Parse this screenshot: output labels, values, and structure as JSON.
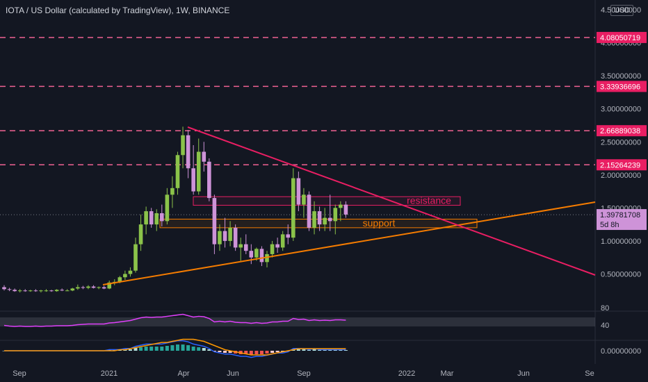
{
  "header": {
    "title": "IOTA / US Dollar (calculated by TradingView), 1W, BINANCE",
    "currency": "USD"
  },
  "colors": {
    "background": "#131722",
    "up": "#8bc34a",
    "down": "#ce93d8",
    "level_line": "#f06292",
    "level_tag": "#e91e63",
    "trendline": "#f57c00",
    "resistance_line": "#e91e63",
    "rsi": "#e040fb",
    "macd": "#2962ff",
    "signal": "#ff9800"
  },
  "chart_data": {
    "type": "candlestick",
    "symbol": "IOTA / US Dollar (calculated by TradingView)",
    "interval": "1W",
    "exchange": "BINANCE",
    "y_axis": {
      "ticks": [
        "4.50000000",
        "4.00000000",
        "3.50000000",
        "3.00000000",
        "2.50000000",
        "2.00000000",
        "1.50000000",
        "1.00000000",
        "0.50000000"
      ],
      "ylim": [
        0.0,
        4.62
      ]
    },
    "x_axis": {
      "ticks": [
        "Sep",
        "2021",
        "Apr",
        "Jun",
        "Sep",
        "2022",
        "Mar",
        "Jun",
        "Se"
      ]
    },
    "price_levels": [
      4.08050719,
      3.33936696,
      2.66889038,
      2.15264239
    ],
    "price_level_labels": [
      "4.08050719",
      "3.33936696",
      "2.66889038",
      "2.15264239"
    ],
    "current_price": "1.39781708",
    "countdown": "5d 8h",
    "candles": [
      [
        0.3,
        0.33,
        0.25,
        0.27
      ],
      [
        0.27,
        0.29,
        0.24,
        0.26
      ],
      [
        0.26,
        0.28,
        0.23,
        0.24
      ],
      [
        0.24,
        0.27,
        0.22,
        0.25
      ],
      [
        0.25,
        0.27,
        0.23,
        0.24
      ],
      [
        0.24,
        0.26,
        0.23,
        0.25
      ],
      [
        0.25,
        0.27,
        0.23,
        0.24
      ],
      [
        0.24,
        0.26,
        0.22,
        0.25
      ],
      [
        0.25,
        0.27,
        0.23,
        0.25
      ],
      [
        0.25,
        0.26,
        0.23,
        0.24
      ],
      [
        0.24,
        0.27,
        0.23,
        0.26
      ],
      [
        0.26,
        0.28,
        0.24,
        0.25
      ],
      [
        0.25,
        0.27,
        0.24,
        0.25
      ],
      [
        0.25,
        0.29,
        0.24,
        0.28
      ],
      [
        0.28,
        0.34,
        0.26,
        0.3
      ],
      [
        0.3,
        0.32,
        0.27,
        0.29
      ],
      [
        0.29,
        0.33,
        0.27,
        0.31
      ],
      [
        0.31,
        0.33,
        0.28,
        0.29
      ],
      [
        0.29,
        0.31,
        0.27,
        0.3
      ],
      [
        0.3,
        0.32,
        0.27,
        0.28
      ],
      [
        0.28,
        0.4,
        0.27,
        0.37
      ],
      [
        0.37,
        0.42,
        0.33,
        0.38
      ],
      [
        0.38,
        0.47,
        0.36,
        0.45
      ],
      [
        0.45,
        0.55,
        0.41,
        0.5
      ],
      [
        0.5,
        0.6,
        0.46,
        0.55
      ],
      [
        0.55,
        1.05,
        0.52,
        0.95
      ],
      [
        0.95,
        1.4,
        0.85,
        1.25
      ],
      [
        1.25,
        1.52,
        1.1,
        1.45
      ],
      [
        1.45,
        1.5,
        1.2,
        1.25
      ],
      [
        1.25,
        1.48,
        1.15,
        1.42
      ],
      [
        1.42,
        1.55,
        1.22,
        1.3
      ],
      [
        1.3,
        1.8,
        1.25,
        1.7
      ],
      [
        1.7,
        1.98,
        1.5,
        1.8
      ],
      [
        1.8,
        2.35,
        1.7,
        2.3
      ],
      [
        2.3,
        2.73,
        2.1,
        2.6
      ],
      [
        2.6,
        2.68,
        1.95,
        2.1
      ],
      [
        2.1,
        2.45,
        1.7,
        1.75
      ],
      [
        1.75,
        2.55,
        1.7,
        2.35
      ],
      [
        2.35,
        2.5,
        2.05,
        2.2
      ],
      [
        2.2,
        2.25,
        1.6,
        1.65
      ],
      [
        1.65,
        1.7,
        0.8,
        0.95
      ],
      [
        0.95,
        1.25,
        0.85,
        1.15
      ],
      [
        1.15,
        1.35,
        0.9,
        1.0
      ],
      [
        1.0,
        1.3,
        0.92,
        1.2
      ],
      [
        1.2,
        1.25,
        0.85,
        0.9
      ],
      [
        0.9,
        1.05,
        0.7,
        0.95
      ],
      [
        0.95,
        1.1,
        0.8,
        0.85
      ],
      [
        0.85,
        0.95,
        0.65,
        0.75
      ],
      [
        0.75,
        0.9,
        0.7,
        0.88
      ],
      [
        0.88,
        0.92,
        0.62,
        0.68
      ],
      [
        0.68,
        0.85,
        0.6,
        0.8
      ],
      [
        0.8,
        1.0,
        0.75,
        0.95
      ],
      [
        0.95,
        1.05,
        0.82,
        0.9
      ],
      [
        0.9,
        1.15,
        0.85,
        1.1
      ],
      [
        1.1,
        1.25,
        0.95,
        1.05
      ],
      [
        1.05,
        2.1,
        1.0,
        1.95
      ],
      [
        1.95,
        2.05,
        1.45,
        1.55
      ],
      [
        1.55,
        1.8,
        1.35,
        1.7
      ],
      [
        1.7,
        1.75,
        1.15,
        1.2
      ],
      [
        1.2,
        1.6,
        1.1,
        1.45
      ],
      [
        1.45,
        1.52,
        1.15,
        1.25
      ],
      [
        1.25,
        1.5,
        1.15,
        1.35
      ],
      [
        1.35,
        1.7,
        1.15,
        1.3
      ],
      [
        1.3,
        1.55,
        1.1,
        1.5
      ],
      [
        1.5,
        1.6,
        1.3,
        1.55
      ],
      [
        1.55,
        1.6,
        1.35,
        1.4
      ]
    ],
    "annotations": {
      "resistance": "resistance",
      "support": "support"
    },
    "rsi": {
      "ticks": [
        "80",
        "40"
      ],
      "band": [
        70,
        30
      ]
    },
    "macd": {
      "ticks": [
        "0.00000000"
      ]
    }
  }
}
